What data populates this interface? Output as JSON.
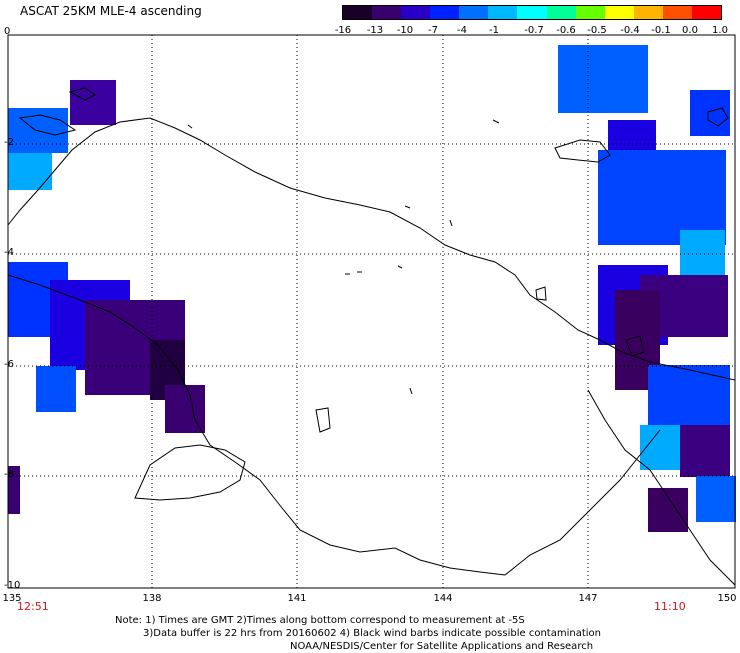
{
  "title": "ASCAT 25KM MLE-4 ascending",
  "colorbar": {
    "labels": [
      "-16",
      "-13",
      "-10",
      "-7",
      "-4",
      "-1",
      "-0.7",
      "-0.6",
      "-0.5",
      "-0.4",
      "-0.1",
      "0.0",
      "1.0"
    ],
    "colors": [
      "#190028",
      "#3a006e",
      "#2a00c8",
      "#0022ff",
      "#0070ff",
      "#00b8ff",
      "#00ffff",
      "#00ff96",
      "#64ff00",
      "#ffff00",
      "#ffb400",
      "#ff5000",
      "#ff0000"
    ]
  },
  "axes": {
    "lat_labels": [
      "0",
      "-2",
      "-4",
      "-6",
      "-8",
      "-10"
    ],
    "lon_labels": [
      "135",
      "138",
      "141",
      "144",
      "147",
      "150"
    ]
  },
  "times": {
    "left": "12:51",
    "right": "11:10"
  },
  "notes": {
    "line1": "Note: 1) Times are GMT 2)Times along bottom correspond to measurement at -5S",
    "line2": "3)Data buffer is 22 hrs from 20160602 4) Black wind barbs indicate possible contamination",
    "line3": "NOAA/NESDIS/Center for Satellite Applications and Research"
  }
}
